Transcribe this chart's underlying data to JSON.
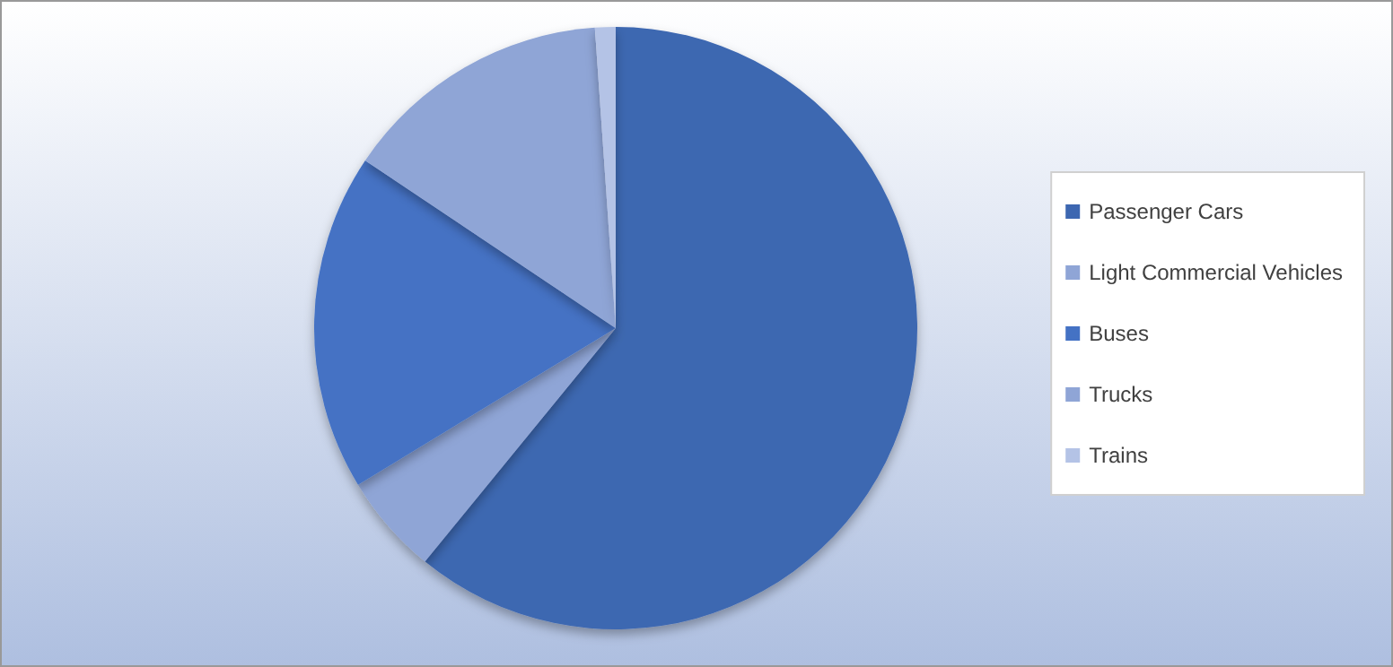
{
  "chart_data": {
    "type": "pie",
    "categories": [
      "Passenger Cars",
      "Light Commercial Vehicles",
      "Buses",
      "Trucks",
      "Trains"
    ],
    "values": [
      60.9,
      5.4,
      18.1,
      14.5,
      1.1
    ],
    "colors": [
      "#3d67b1",
      "#8fa5d6",
      "#4472c4",
      "#8fa5d6",
      "#b4c3e6"
    ],
    "legend": "right"
  }
}
